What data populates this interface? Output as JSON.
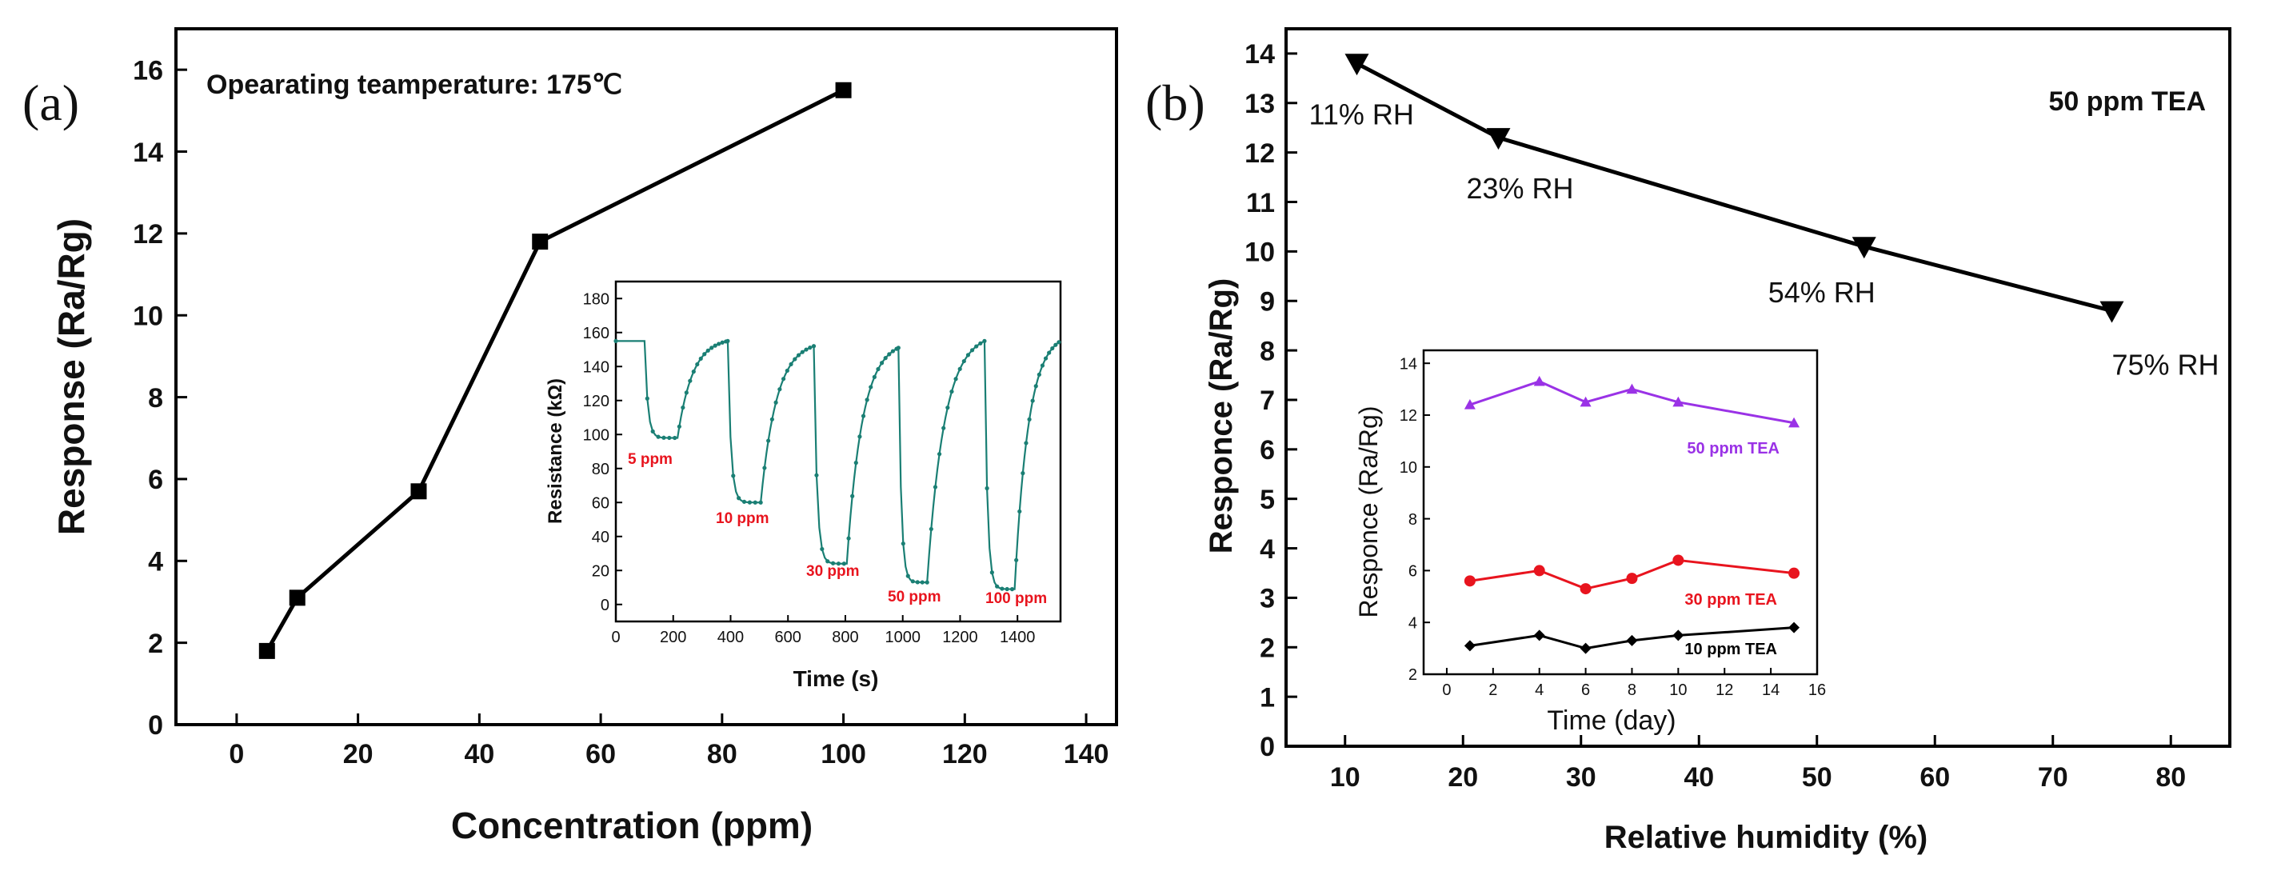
{
  "chart_data": [
    {
      "type": "line",
      "panel": "(a)",
      "title": "",
      "annotation": "Opearating teamperature: 175℃",
      "xlabel": "Concentration (ppm)",
      "ylabel": "Response (Ra/Rg)",
      "xlim": [
        -10,
        145
      ],
      "ylim": [
        0,
        17
      ],
      "xticks": [
        0,
        20,
        40,
        60,
        80,
        100,
        120,
        140
      ],
      "yticks": [
        0,
        2,
        4,
        6,
        8,
        10,
        12,
        14,
        16
      ],
      "series": [
        {
          "name": "Response",
          "color": "#000000",
          "marker": "square",
          "x": [
            5,
            10,
            30,
            50,
            100
          ],
          "y": [
            1.8,
            3.1,
            5.7,
            11.8,
            15.5
          ]
        }
      ],
      "inset": {
        "type": "line",
        "xlabel": "Time (s)",
        "ylabel": "Resistance (kΩ)",
        "xlim": [
          0,
          1550
        ],
        "ylim": [
          -10,
          190
        ],
        "xticks": [
          0,
          200,
          400,
          600,
          800,
          1000,
          1200,
          1400
        ],
        "yticks": [
          0,
          20,
          40,
          60,
          80,
          100,
          120,
          140,
          160,
          180
        ],
        "color": "#1a7f74",
        "label_color": "#e8141e",
        "segments": [
          {
            "label": "5 ppm",
            "baseline": 155,
            "min": 98,
            "on": 100,
            "off": 215,
            "off_end": 390
          },
          {
            "label": "10 ppm",
            "baseline": 152,
            "min": 60,
            "on": 390,
            "off": 505,
            "off_end": 690
          },
          {
            "label": "30 ppm",
            "baseline": 151,
            "min": 24,
            "on": 690,
            "off": 805,
            "off_end": 985
          },
          {
            "label": "50 ppm",
            "baseline": 155,
            "min": 13,
            "on": 985,
            "off": 1085,
            "off_end": 1285
          },
          {
            "label": "100 ppm",
            "baseline": 155,
            "min": 9,
            "on": 1285,
            "off": 1390,
            "off_end": 1550
          }
        ]
      }
    },
    {
      "type": "line",
      "panel": "(b)",
      "title": "",
      "annotation": "50 ppm TEA",
      "xlabel": "Relative humidity (%)",
      "ylabel": "Responce (Ra/Rg)",
      "xlim": [
        5,
        85
      ],
      "ylim": [
        0,
        14.5
      ],
      "xticks": [
        10,
        20,
        30,
        40,
        50,
        60,
        70,
        80
      ],
      "yticks": [
        0,
        1,
        2,
        3,
        4,
        5,
        6,
        7,
        8,
        9,
        10,
        11,
        12,
        13,
        14
      ],
      "series": [
        {
          "name": "Response",
          "color": "#000000",
          "marker": "triangle-down",
          "x": [
            11,
            23,
            54,
            75
          ],
          "y": [
            13.8,
            12.3,
            10.1,
            8.8
          ],
          "point_labels": [
            "11% RH",
            "23% RH",
            "54% RH",
            "75% RH"
          ]
        }
      ],
      "inset": {
        "type": "line",
        "xlabel": "Time (day)",
        "ylabel": "Responce (Ra/Rg)",
        "xlim": [
          -1,
          16
        ],
        "ylim": [
          2,
          14.5
        ],
        "xticks": [
          0,
          2,
          4,
          6,
          8,
          10,
          12,
          14,
          16
        ],
        "yticks": [
          2,
          4,
          6,
          8,
          10,
          12,
          14
        ],
        "series": [
          {
            "name": "50 ppm TEA",
            "color": "#9a32e6",
            "marker": "triangle-up",
            "x": [
              1,
              4,
              6,
              8,
              10,
              15
            ],
            "y": [
              12.4,
              13.3,
              12.5,
              13.0,
              12.5,
              11.7
            ]
          },
          {
            "name": "30 ppm TEA",
            "color": "#e8141e",
            "marker": "circle",
            "x": [
              1,
              4,
              6,
              8,
              10,
              15
            ],
            "y": [
              5.6,
              6.0,
              5.3,
              5.7,
              6.4,
              5.9
            ]
          },
          {
            "name": "10 ppm TEA",
            "color": "#000000",
            "marker": "diamond",
            "x": [
              1,
              4,
              6,
              8,
              10,
              15
            ],
            "y": [
              3.1,
              3.5,
              3.0,
              3.3,
              3.5,
              3.8
            ]
          }
        ]
      }
    }
  ]
}
